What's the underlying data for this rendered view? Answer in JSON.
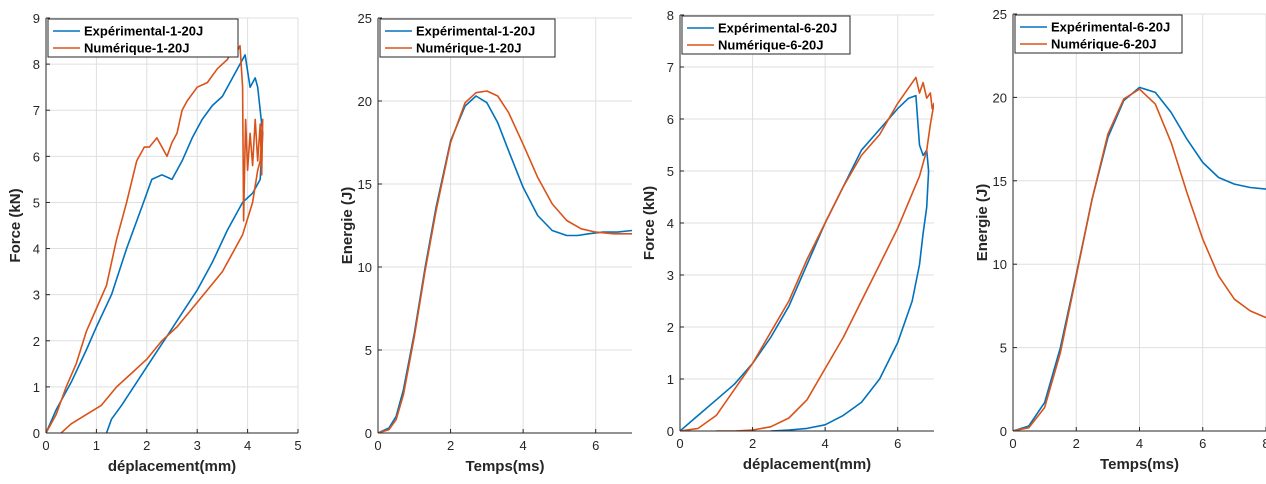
{
  "colors": {
    "experimental": "#0072BD",
    "numerique": "#D95319"
  },
  "chart_data": [
    {
      "type": "line",
      "xlabel": "déplacement(mm)",
      "ylabel": "Force (kN)",
      "xlim": [
        0,
        5
      ],
      "ylim": [
        0,
        9
      ],
      "xticks": [
        0,
        1,
        2,
        3,
        4,
        5
      ],
      "yticks": [
        0,
        1,
        2,
        3,
        4,
        5,
        6,
        7,
        8,
        9
      ],
      "grid": true,
      "legend": "top-left",
      "series": [
        {
          "name": "Expérimental-1-20J",
          "color": "#0072BD",
          "x": [
            0,
            0.2,
            0.5,
            0.8,
            1.0,
            1.3,
            1.6,
            1.9,
            2.1,
            2.3,
            2.5,
            2.7,
            2.9,
            3.1,
            3.3,
            3.5,
            3.7,
            3.85,
            3.95,
            4.05,
            4.15,
            4.2,
            4.3,
            4.25,
            4.1,
            3.9,
            3.6,
            3.3,
            3.0,
            2.7,
            2.4,
            2.1,
            1.8,
            1.5,
            1.3,
            1.2
          ],
          "y": [
            0,
            0.5,
            1.1,
            1.8,
            2.3,
            3.0,
            4.0,
            4.9,
            5.5,
            5.6,
            5.5,
            5.9,
            6.4,
            6.8,
            7.1,
            7.3,
            7.7,
            8.0,
            8.2,
            7.5,
            7.7,
            7.5,
            6.5,
            5.5,
            5.2,
            5.0,
            4.4,
            3.7,
            3.1,
            2.6,
            2.1,
            1.6,
            1.1,
            0.6,
            0.3,
            0
          ]
        },
        {
          "name": "Numérique-1-20J",
          "color": "#D95319",
          "x": [
            0,
            0.2,
            0.4,
            0.6,
            0.8,
            1.0,
            1.2,
            1.4,
            1.6,
            1.8,
            1.95,
            2.05,
            2.2,
            2.4,
            2.5,
            2.6,
            2.7,
            2.8,
            3.0,
            3.2,
            3.4,
            3.6,
            3.7,
            3.8,
            3.85,
            3.9,
            3.92,
            3.96,
            4.0,
            4.05,
            4.1,
            4.15,
            4.2,
            4.25,
            4.28,
            4.3,
            4.25,
            4.2,
            4.1,
            3.9,
            3.7,
            3.5,
            3.2,
            2.9,
            2.6,
            2.3,
            2.0,
            1.7,
            1.4,
            1.1,
            0.8,
            0.5,
            0.3
          ],
          "y": [
            0,
            0.4,
            1.0,
            1.5,
            2.2,
            2.7,
            3.2,
            4.2,
            5.0,
            5.9,
            6.2,
            6.2,
            6.4,
            6.0,
            6.3,
            6.5,
            7.0,
            7.2,
            7.5,
            7.6,
            7.9,
            8.1,
            8.3,
            8.3,
            8.4,
            7.5,
            4.6,
            6.8,
            5.7,
            6.5,
            5.8,
            6.8,
            5.9,
            6.7,
            5.6,
            6.8,
            5.9,
            5.7,
            5.0,
            4.3,
            3.9,
            3.5,
            3.1,
            2.7,
            2.3,
            2.0,
            1.6,
            1.3,
            1.0,
            0.6,
            0.4,
            0.2,
            0
          ]
        }
      ]
    },
    {
      "type": "line",
      "xlabel": "Temps(ms)",
      "ylabel": "Energie (J)",
      "xlim": [
        0,
        7
      ],
      "ylim": [
        0,
        25
      ],
      "xticks": [
        0,
        2,
        4,
        6
      ],
      "yticks": [
        0,
        5,
        10,
        15,
        20,
        25
      ],
      "grid": true,
      "legend": "top-left",
      "series": [
        {
          "name": "Expérimental-1-20J",
          "color": "#0072BD",
          "x": [
            0,
            0.3,
            0.5,
            0.7,
            1.0,
            1.3,
            1.6,
            2.0,
            2.4,
            2.7,
            3.0,
            3.3,
            3.6,
            4.0,
            4.4,
            4.8,
            5.2,
            5.5,
            5.8,
            6.2,
            6.6,
            7.0
          ],
          "y": [
            0,
            0.3,
            1.0,
            2.6,
            6.0,
            10.0,
            13.6,
            17.6,
            19.7,
            20.3,
            19.9,
            18.7,
            17.0,
            14.8,
            13.1,
            12.2,
            11.9,
            11.9,
            12.0,
            12.1,
            12.1,
            12.2
          ]
        },
        {
          "name": "Numérique-1-20J",
          "color": "#D95319",
          "x": [
            0,
            0.3,
            0.5,
            0.7,
            1.0,
            1.3,
            1.6,
            2.0,
            2.4,
            2.7,
            3.0,
            3.3,
            3.6,
            4.0,
            4.4,
            4.8,
            5.2,
            5.6,
            6.0,
            6.5,
            7.0
          ],
          "y": [
            0,
            0.2,
            0.8,
            2.3,
            5.8,
            9.8,
            13.4,
            17.5,
            19.9,
            20.5,
            20.6,
            20.3,
            19.3,
            17.4,
            15.4,
            13.8,
            12.8,
            12.3,
            12.1,
            12.0,
            12.0
          ]
        }
      ]
    },
    {
      "type": "line",
      "xlabel": "déplacement(mm)",
      "ylabel": "Force (kN)",
      "xlim": [
        0,
        7
      ],
      "ylim": [
        0,
        8
      ],
      "xticks": [
        0,
        2,
        4,
        6
      ],
      "yticks": [
        0,
        1,
        2,
        3,
        4,
        5,
        6,
        7,
        8
      ],
      "grid": true,
      "legend": "top-left",
      "series": [
        {
          "name": "Expérimental-6-20J",
          "color": "#0072BD",
          "x": [
            0,
            0.5,
            1.0,
            1.5,
            2.0,
            2.5,
            3.0,
            3.5,
            4.0,
            4.5,
            5.0,
            5.5,
            6.0,
            6.3,
            6.5,
            6.6,
            6.7,
            6.8,
            6.85,
            6.8,
            6.7,
            6.6,
            6.4,
            6.0,
            5.5,
            5.0,
            4.5,
            4.0,
            3.5,
            3.0,
            2.5
          ],
          "y": [
            0,
            0.3,
            0.6,
            0.9,
            1.3,
            1.8,
            2.4,
            3.2,
            4.0,
            4.7,
            5.4,
            5.8,
            6.2,
            6.4,
            6.45,
            5.5,
            5.3,
            5.4,
            5.0,
            4.3,
            3.8,
            3.2,
            2.5,
            1.7,
            1.0,
            0.55,
            0.3,
            0.12,
            0.05,
            0.02,
            0
          ]
        },
        {
          "name": "Numérique-6-20J",
          "color": "#D95319",
          "x": [
            0,
            0.5,
            1.0,
            1.5,
            2.0,
            2.5,
            3.0,
            3.5,
            4.0,
            4.5,
            5.0,
            5.5,
            6.0,
            6.3,
            6.5,
            6.6,
            6.7,
            6.8,
            6.9,
            6.95,
            7.0,
            6.9,
            6.8,
            6.6,
            6.3,
            6.0,
            5.5,
            5.0,
            4.5,
            4.0,
            3.5,
            3.0,
            2.5,
            2.0,
            1.5,
            1.0
          ],
          "y": [
            0,
            0.05,
            0.3,
            0.8,
            1.3,
            1.9,
            2.5,
            3.3,
            4.0,
            4.7,
            5.3,
            5.7,
            6.3,
            6.6,
            6.8,
            6.5,
            6.7,
            6.4,
            6.5,
            6.2,
            6.3,
            5.9,
            5.4,
            4.9,
            4.4,
            3.9,
            3.2,
            2.5,
            1.8,
            1.2,
            0.6,
            0.25,
            0.08,
            0.02,
            0,
            0
          ]
        }
      ]
    },
    {
      "type": "line",
      "xlabel": "Temps(ms)",
      "ylabel": "Energie (J)",
      "xlim": [
        0,
        8
      ],
      "ylim": [
        0,
        25
      ],
      "xticks": [
        0,
        2,
        4,
        6,
        8
      ],
      "yticks": [
        0,
        5,
        10,
        15,
        20,
        25
      ],
      "grid": true,
      "legend": "top-left",
      "series": [
        {
          "name": "Expérimental-6-20J",
          "color": "#0072BD",
          "x": [
            0,
            0.5,
            1.0,
            1.5,
            2.0,
            2.5,
            3.0,
            3.5,
            4.0,
            4.5,
            5.0,
            5.5,
            6.0,
            6.5,
            7.0,
            7.5,
            8.0
          ],
          "y": [
            0,
            0.3,
            1.7,
            5.0,
            9.4,
            13.9,
            17.6,
            19.8,
            20.6,
            20.3,
            19.1,
            17.5,
            16.1,
            15.2,
            14.8,
            14.6,
            14.5
          ]
        },
        {
          "name": "Numérique-6-20J",
          "color": "#D95319",
          "x": [
            0,
            0.5,
            1.0,
            1.5,
            2.0,
            2.5,
            3.0,
            3.5,
            4.0,
            4.5,
            5.0,
            5.5,
            6.0,
            6.5,
            7.0,
            7.5,
            8.0
          ],
          "y": [
            0,
            0.2,
            1.4,
            4.7,
            9.3,
            13.9,
            17.8,
            19.9,
            20.5,
            19.6,
            17.3,
            14.3,
            11.5,
            9.3,
            7.9,
            7.2,
            6.8
          ]
        }
      ]
    }
  ]
}
